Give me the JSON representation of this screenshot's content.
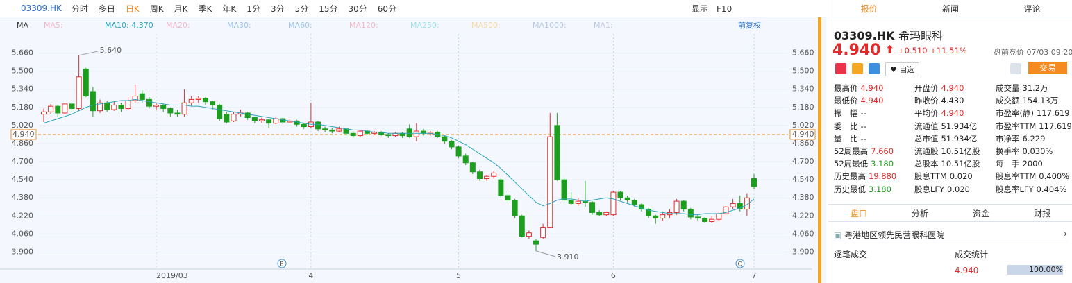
{
  "toolbar": {
    "code": "03309.HK",
    "periods": [
      "分时",
      "多日",
      "日K",
      "周K",
      "月K",
      "季K",
      "年K",
      "1分",
      "3分",
      "5分",
      "15分",
      "30分",
      "60分"
    ],
    "active_period_index": 2,
    "display": "显示",
    "f10": "F10"
  },
  "ma_bar": {
    "label": "MA",
    "items": [
      "MA5:",
      "MA10: 4.370",
      "MA20:",
      "MA30:",
      "MA60:",
      "MA120:",
      "MA250:",
      "MA500:",
      "MA1000:",
      "MA1:"
    ],
    "item_colors": [
      "#f0b8c8",
      "#2aa3b8",
      "#f0b8c8",
      "#9fc3e6",
      "#9fc3e6",
      "#f0b8c8",
      "#9fe0e6",
      "#f5d9a8",
      "#b9c7e0",
      "#b9c7e0"
    ],
    "adjust": "前复权"
  },
  "chart_data": {
    "type": "candlestick",
    "up_color": "#e02a2a",
    "down_color": "#1e9e1e",
    "ma_color": "#2aa3b8",
    "ylim": [
      3.86,
      5.78
    ],
    "yticks": [
      {
        "value": 5.66,
        "label": "5.660"
      },
      {
        "value": 5.5,
        "label": "5.500"
      },
      {
        "value": 5.34,
        "label": "5.340"
      },
      {
        "value": 5.18,
        "label": "5.180"
      },
      {
        "value": 5.02,
        "label": "5.020"
      },
      {
        "value": 4.86,
        "label": "4.860"
      },
      {
        "value": 4.7,
        "label": "4.700"
      },
      {
        "value": 4.54,
        "label": "4.540"
      },
      {
        "value": 4.38,
        "label": "4.380"
      },
      {
        "value": 4.22,
        "label": "4.220"
      },
      {
        "value": 4.06,
        "label": "4.060"
      },
      {
        "value": 3.9,
        "label": "3.900"
      }
    ],
    "reference_line": {
      "value": 4.94,
      "label": "4.940",
      "color": "#f08c1e"
    },
    "annotations": [
      "5.640",
      "3.910"
    ],
    "event_icons": [
      "E",
      "Q"
    ],
    "categories": [
      null,
      null,
      null,
      null,
      null,
      null,
      null,
      null,
      null,
      null,
      null,
      null,
      null,
      null,
      null,
      null,
      "2019/03",
      null,
      null,
      null,
      null,
      null,
      null,
      null,
      null,
      null,
      null,
      null,
      null,
      null,
      null,
      null,
      null,
      null,
      null,
      null,
      null,
      null,
      "4",
      null,
      null,
      null,
      null,
      null,
      null,
      null,
      null,
      null,
      null,
      null,
      null,
      null,
      null,
      null,
      null,
      null,
      null,
      null,
      null,
      "5",
      null,
      null,
      null,
      null,
      null,
      null,
      null,
      null,
      null,
      null,
      null,
      null,
      null,
      null,
      null,
      null,
      null,
      null,
      null,
      null,
      null,
      "6",
      null,
      null,
      null,
      null,
      null,
      null,
      null,
      null,
      null,
      null,
      null,
      null,
      null,
      null,
      null,
      null,
      null,
      null,
      null,
      "7"
    ],
    "ohlc": [
      [
        5.12,
        5.17,
        5.05,
        5.14
      ],
      [
        5.14,
        5.21,
        5.12,
        5.19
      ],
      [
        5.19,
        5.2,
        5.1,
        5.13
      ],
      [
        5.13,
        5.22,
        5.12,
        5.21
      ],
      [
        5.21,
        5.23,
        5.14,
        5.17
      ],
      [
        5.17,
        5.64,
        5.15,
        5.45
      ],
      [
        5.52,
        5.53,
        5.27,
        5.28
      ],
      [
        5.32,
        5.36,
        5.1,
        5.15
      ],
      [
        5.15,
        5.25,
        5.13,
        5.22
      ],
      [
        5.22,
        5.24,
        5.14,
        5.16
      ],
      [
        5.16,
        5.23,
        5.15,
        5.2
      ],
      [
        5.2,
        5.22,
        5.14,
        5.17
      ],
      [
        5.17,
        5.27,
        5.16,
        5.24
      ],
      [
        5.24,
        5.38,
        5.22,
        5.28
      ],
      [
        5.3,
        5.33,
        5.22,
        5.25
      ],
      [
        5.25,
        5.27,
        5.17,
        5.19
      ],
      [
        5.19,
        5.22,
        5.16,
        5.2
      ],
      [
        5.2,
        5.21,
        5.14,
        5.17
      ],
      [
        5.17,
        5.18,
        5.1,
        5.13
      ],
      [
        5.13,
        5.16,
        5.1,
        5.12
      ],
      [
        5.12,
        5.34,
        5.1,
        5.22
      ],
      [
        5.22,
        5.28,
        5.19,
        5.25
      ],
      [
        5.25,
        5.28,
        5.22,
        5.26
      ],
      [
        5.26,
        5.27,
        5.2,
        5.23
      ],
      [
        5.23,
        5.24,
        5.16,
        5.2
      ],
      [
        5.2,
        5.21,
        5.06,
        5.08
      ],
      [
        5.12,
        5.14,
        5.04,
        5.05
      ],
      [
        5.06,
        5.14,
        5.05,
        5.12
      ],
      [
        5.12,
        5.16,
        5.1,
        5.13
      ],
      [
        5.13,
        5.14,
        5.07,
        5.09
      ],
      [
        5.09,
        5.1,
        5.04,
        5.06
      ],
      [
        5.06,
        5.09,
        5.04,
        5.07
      ],
      [
        5.07,
        5.08,
        5.0,
        5.04
      ],
      [
        5.04,
        5.1,
        5.03,
        5.08
      ],
      [
        5.08,
        5.09,
        5.03,
        5.05
      ],
      [
        5.05,
        5.08,
        5.04,
        5.06
      ],
      [
        5.06,
        5.07,
        5.01,
        5.03
      ],
      [
        5.03,
        5.04,
        4.99,
        5.01
      ],
      [
        5.01,
        5.22,
        5.0,
        5.05
      ],
      [
        5.05,
        5.06,
        4.97,
        4.99
      ],
      [
        4.99,
        5.01,
        4.96,
        4.98
      ],
      [
        4.98,
        5.0,
        4.95,
        4.97
      ],
      [
        4.97,
        5.01,
        4.96,
        4.99
      ],
      [
        4.99,
        5.0,
        4.93,
        4.95
      ],
      [
        4.95,
        4.97,
        4.91,
        4.93
      ],
      [
        4.93,
        4.98,
        4.92,
        4.97
      ],
      [
        4.97,
        4.98,
        4.94,
        4.95
      ],
      [
        4.95,
        4.97,
        4.94,
        4.96
      ],
      [
        4.96,
        4.97,
        4.93,
        4.94
      ],
      [
        4.94,
        4.95,
        4.91,
        4.93
      ],
      [
        4.93,
        4.96,
        4.92,
        4.95
      ],
      [
        4.95,
        4.96,
        4.91,
        4.93
      ],
      [
        4.99,
        5.03,
        4.91,
        4.92
      ],
      [
        4.92,
        5.04,
        4.88,
        4.97
      ],
      [
        4.97,
        4.99,
        4.93,
        4.95
      ],
      [
        4.95,
        4.97,
        4.93,
        4.96
      ],
      [
        4.96,
        4.97,
        4.91,
        4.92
      ],
      [
        4.92,
        4.93,
        4.86,
        4.88
      ],
      [
        4.88,
        4.89,
        4.81,
        4.83
      ],
      [
        4.83,
        4.84,
        4.73,
        4.75
      ],
      [
        4.75,
        4.77,
        4.67,
        4.69
      ],
      [
        4.69,
        4.7,
        4.59,
        4.61
      ],
      [
        4.61,
        4.63,
        4.53,
        4.55
      ],
      [
        4.55,
        4.58,
        4.53,
        4.57
      ],
      [
        4.57,
        4.62,
        4.55,
        4.6
      ],
      [
        4.54,
        4.55,
        4.38,
        4.4
      ],
      [
        4.4,
        4.42,
        4.33,
        4.36
      ],
      [
        4.36,
        4.37,
        4.2,
        4.22
      ],
      [
        4.22,
        4.23,
        4.03,
        4.04
      ],
      [
        4.04,
        4.09,
        4.02,
        4.07
      ],
      [
        4.0,
        4.02,
        3.91,
        3.97
      ],
      [
        4.03,
        4.15,
        4.02,
        4.12
      ],
      [
        4.12,
        5.13,
        4.12,
        4.92
      ],
      [
        5.02,
        5.13,
        4.53,
        4.54
      ],
      [
        4.54,
        4.56,
        4.34,
        4.36
      ],
      [
        4.36,
        4.43,
        4.32,
        4.33
      ],
      [
        4.33,
        4.38,
        4.31,
        4.35
      ],
      [
        4.35,
        4.53,
        4.3,
        4.34
      ],
      [
        4.34,
        4.35,
        4.23,
        4.25
      ],
      [
        4.25,
        4.27,
        4.22,
        4.23
      ],
      [
        4.23,
        4.26,
        4.22,
        4.25
      ],
      [
        4.23,
        4.44,
        4.22,
        4.43
      ],
      [
        4.43,
        4.44,
        4.36,
        4.38
      ],
      [
        4.38,
        4.4,
        4.34,
        4.36
      ],
      [
        4.36,
        4.37,
        4.3,
        4.32
      ],
      [
        4.32,
        4.33,
        4.26,
        4.28
      ],
      [
        4.28,
        4.29,
        4.2,
        4.22
      ],
      [
        4.22,
        4.23,
        4.15,
        4.2
      ],
      [
        4.2,
        4.26,
        4.18,
        4.23
      ],
      [
        4.23,
        4.28,
        4.2,
        4.25
      ],
      [
        4.25,
        4.37,
        4.23,
        4.35
      ],
      [
        4.35,
        4.36,
        4.26,
        4.28
      ],
      [
        4.28,
        4.29,
        4.19,
        4.21
      ],
      [
        4.21,
        4.23,
        4.18,
        4.2
      ],
      [
        4.2,
        4.21,
        4.16,
        4.17
      ],
      [
        4.17,
        4.22,
        4.16,
        4.19
      ],
      [
        4.19,
        4.26,
        4.18,
        4.24
      ],
      [
        4.24,
        4.31,
        4.23,
        4.3
      ],
      [
        4.3,
        4.37,
        4.28,
        4.33
      ],
      [
        4.33,
        4.4,
        4.26,
        4.28
      ],
      [
        4.28,
        4.42,
        4.22,
        4.38
      ],
      [
        4.55,
        4.59,
        4.46,
        4.48
      ]
    ],
    "ma10": [
      5.04,
      5.06,
      5.08,
      5.1,
      5.12,
      5.15,
      5.18,
      5.2,
      5.21,
      5.22,
      5.23,
      5.24,
      5.24,
      5.25,
      5.24,
      5.23,
      5.22,
      5.21,
      5.2,
      5.2,
      5.2,
      5.19,
      5.19,
      5.18,
      5.17,
      5.16,
      5.15,
      5.14,
      5.13,
      5.12,
      5.11,
      5.1,
      5.09,
      5.08,
      5.07,
      5.06,
      5.05,
      5.04,
      5.03,
      5.03,
      5.02,
      5.01,
      5.0,
      4.99,
      4.98,
      4.98,
      4.97,
      4.96,
      4.96,
      4.95,
      4.95,
      4.95,
      4.95,
      4.95,
      4.95,
      4.95,
      4.94,
      4.93,
      4.91,
      4.88,
      4.85,
      4.81,
      4.77,
      4.73,
      4.69,
      4.64,
      4.58,
      4.52,
      4.46,
      4.4,
      4.34,
      4.31,
      4.33,
      4.36,
      4.37,
      4.37,
      4.36,
      4.35,
      4.36,
      4.37,
      4.38,
      4.37,
      4.35,
      4.33,
      4.31,
      4.29,
      4.27,
      4.26,
      4.25,
      4.24,
      4.24,
      4.24,
      4.23,
      4.23,
      4.24,
      4.24,
      4.24,
      4.25,
      4.27,
      4.29,
      4.32,
      4.37
    ]
  },
  "panel": {
    "tabs": [
      "报价",
      "新闻",
      "评论"
    ],
    "code": "03309.HK",
    "name": "希玛眼科",
    "price": "4.940",
    "change": "+0.510",
    "change_pct": "+11.51%",
    "premarket": "盘前竞价 07/03 09:20",
    "watch": "自选",
    "trade": "交易",
    "stats": [
      [
        {
          "label": "最高价",
          "value": "4.940",
          "color": "#e02a2a"
        },
        {
          "label": "开盘价",
          "value": "4.940",
          "color": "#e02a2a"
        },
        {
          "label": "成交量",
          "value": "31.2万",
          "color": "#222"
        }
      ],
      [
        {
          "label": "最低价",
          "value": "4.940",
          "color": "#e02a2a"
        },
        {
          "label": "昨收价",
          "value": "4.430",
          "color": "#222"
        },
        {
          "label": "成交额",
          "value": "154.13万",
          "color": "#222"
        }
      ],
      [
        {
          "label": "振　幅",
          "value": "--",
          "color": "#222"
        },
        {
          "label": "平均价",
          "value": "4.940",
          "color": "#e02a2a"
        },
        {
          "label": "市盈率(静)",
          "value": "117.619",
          "color": "#222"
        }
      ],
      [
        {
          "label": "委　比",
          "value": "--",
          "color": "#222"
        },
        {
          "label": "流通值",
          "value": "51.934亿",
          "color": "#222"
        },
        {
          "label": "市盈率TTM",
          "value": "117.619",
          "color": "#222"
        }
      ],
      [
        {
          "label": "量　比",
          "value": "--",
          "color": "#222"
        },
        {
          "label": "总市值",
          "value": "51.934亿",
          "color": "#222"
        },
        {
          "label": "市净率",
          "value": "6.229",
          "color": "#222"
        }
      ],
      [
        {
          "label": "52周最高",
          "value": "7.660",
          "color": "#e02a2a"
        },
        {
          "label": "流通股",
          "value": "10.51亿股",
          "color": "#222"
        },
        {
          "label": "换手率",
          "value": "0.030%",
          "color": "#222"
        }
      ],
      [
        {
          "label": "52周最低",
          "value": "3.180",
          "color": "#1e9e1e"
        },
        {
          "label": "总股本",
          "value": "10.51亿股",
          "color": "#222"
        },
        {
          "label": "每　手",
          "value": "2000",
          "color": "#222"
        }
      ],
      [
        {
          "label": "历史最高",
          "value": "19.880",
          "color": "#e02a2a"
        },
        {
          "label": "股息TTM",
          "value": "0.020",
          "color": "#222"
        },
        {
          "label": "股息率TTM",
          "value": "0.400%",
          "color": "#222"
        }
      ],
      [
        {
          "label": "历史最低",
          "value": "3.180",
          "color": "#1e9e1e"
        },
        {
          "label": "股息LFY",
          "value": "0.020",
          "color": "#222"
        },
        {
          "label": "股息率LFY",
          "value": "0.404%",
          "color": "#222"
        }
      ]
    ],
    "bottom_tabs": [
      "盘口",
      "分析",
      "资金",
      "财报"
    ],
    "sector": "粤港地区领先民营眼科医院",
    "trades_title": "逐笔成交",
    "stats_title": "成交统计",
    "trade_price": "4.940",
    "trade_pct": "100.00%"
  }
}
